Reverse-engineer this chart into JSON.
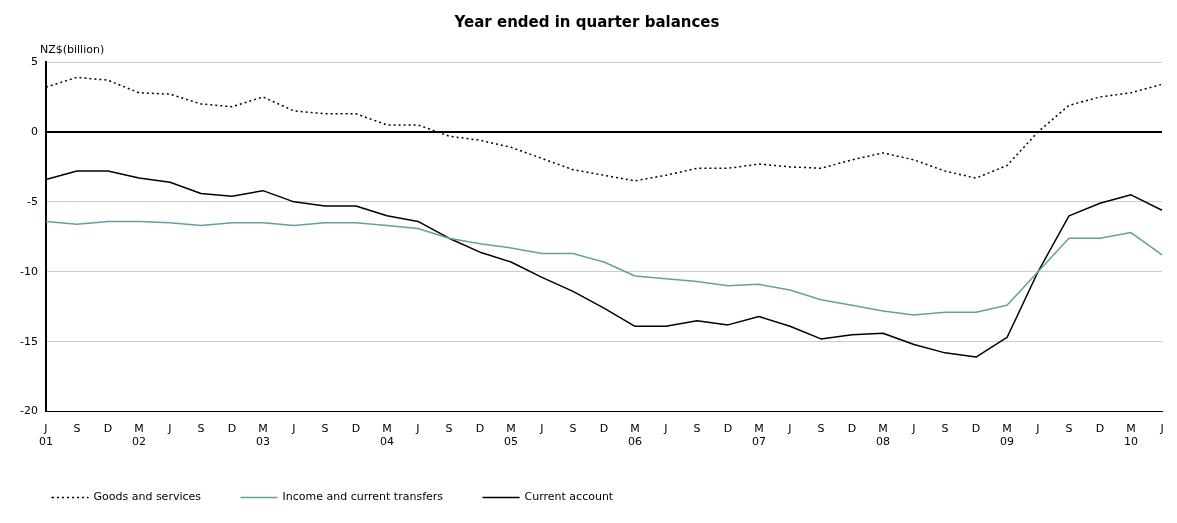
{
  "chart_data": {
    "type": "line",
    "title": "Year ended in quarter balances",
    "ylabel": "NZ$(billion)",
    "categories": [
      "J\n01",
      "S",
      "D",
      "M\n02",
      "J",
      "S",
      "D",
      "M\n03",
      "J",
      "S",
      "D",
      "M\n04",
      "J",
      "S",
      "D",
      "M\n05",
      "J",
      "S",
      "D",
      "M\n06",
      "J",
      "S",
      "D",
      "M\n07",
      "J",
      "S",
      "D",
      "M\n08",
      "J",
      "S",
      "D",
      "M\n09",
      "J",
      "S",
      "D",
      "M\n10",
      "J"
    ],
    "series": [
      {
        "name": "Goods and services",
        "color": "#000000",
        "line_style": "dotted",
        "values": [
          3.2,
          3.9,
          3.7,
          2.8,
          2.7,
          2.0,
          1.8,
          2.5,
          1.5,
          1.3,
          1.3,
          0.5,
          0.5,
          -0.3,
          -0.6,
          -1.1,
          -1.9,
          -2.7,
          -3.1,
          -3.5,
          -3.1,
          -2.6,
          -2.6,
          -2.3,
          -2.5,
          -2.6,
          -2.0,
          -1.5,
          -2.0,
          -2.8,
          -3.3,
          -2.4,
          0.0,
          1.9,
          2.5,
          2.8,
          3.4
        ]
      },
      {
        "name": "Income and current transfers",
        "color": "#5fa3a0",
        "line_style": "solid",
        "values": [
          -6.4,
          -6.6,
          -6.4,
          -6.4,
          -6.5,
          -6.7,
          -6.5,
          -6.5,
          -6.7,
          -6.5,
          -6.5,
          -6.7,
          -6.9,
          -7.6,
          -8.0,
          -8.3,
          -8.7,
          -8.7,
          -9.3,
          -10.3,
          -10.5,
          -10.7,
          -11.0,
          -10.9,
          -11.3,
          -12.0,
          -12.4,
          -12.8,
          -13.1,
          -12.9,
          -12.9,
          -12.4,
          -10.0,
          -7.6,
          -7.6,
          -7.2,
          -8.8
        ]
      },
      {
        "name": "Current account",
        "color": "#000000",
        "line_style": "solid",
        "values": [
          -3.4,
          -2.8,
          -2.8,
          -3.3,
          -3.6,
          -4.4,
          -4.6,
          -4.2,
          -5.0,
          -5.3,
          -5.3,
          -6.0,
          -6.4,
          -7.6,
          -8.6,
          -9.3,
          -10.4,
          -11.4,
          -12.6,
          -13.9,
          -13.9,
          -13.5,
          -13.8,
          -13.2,
          -13.9,
          -14.8,
          -14.5,
          -14.4,
          -15.2,
          -15.8,
          -16.1,
          -14.7,
          -10.0,
          -6.0,
          -5.1,
          -4.5,
          -5.6
        ]
      }
    ],
    "ylim": [
      -20,
      5
    ],
    "yticks": [
      -20,
      -15,
      -10,
      -5,
      0,
      5
    ],
    "grid": "y",
    "legend": "bottom",
    "marker": "none",
    "ref_lines": [
      {
        "axis": "y",
        "value": 0,
        "color": "#000000"
      }
    ]
  }
}
